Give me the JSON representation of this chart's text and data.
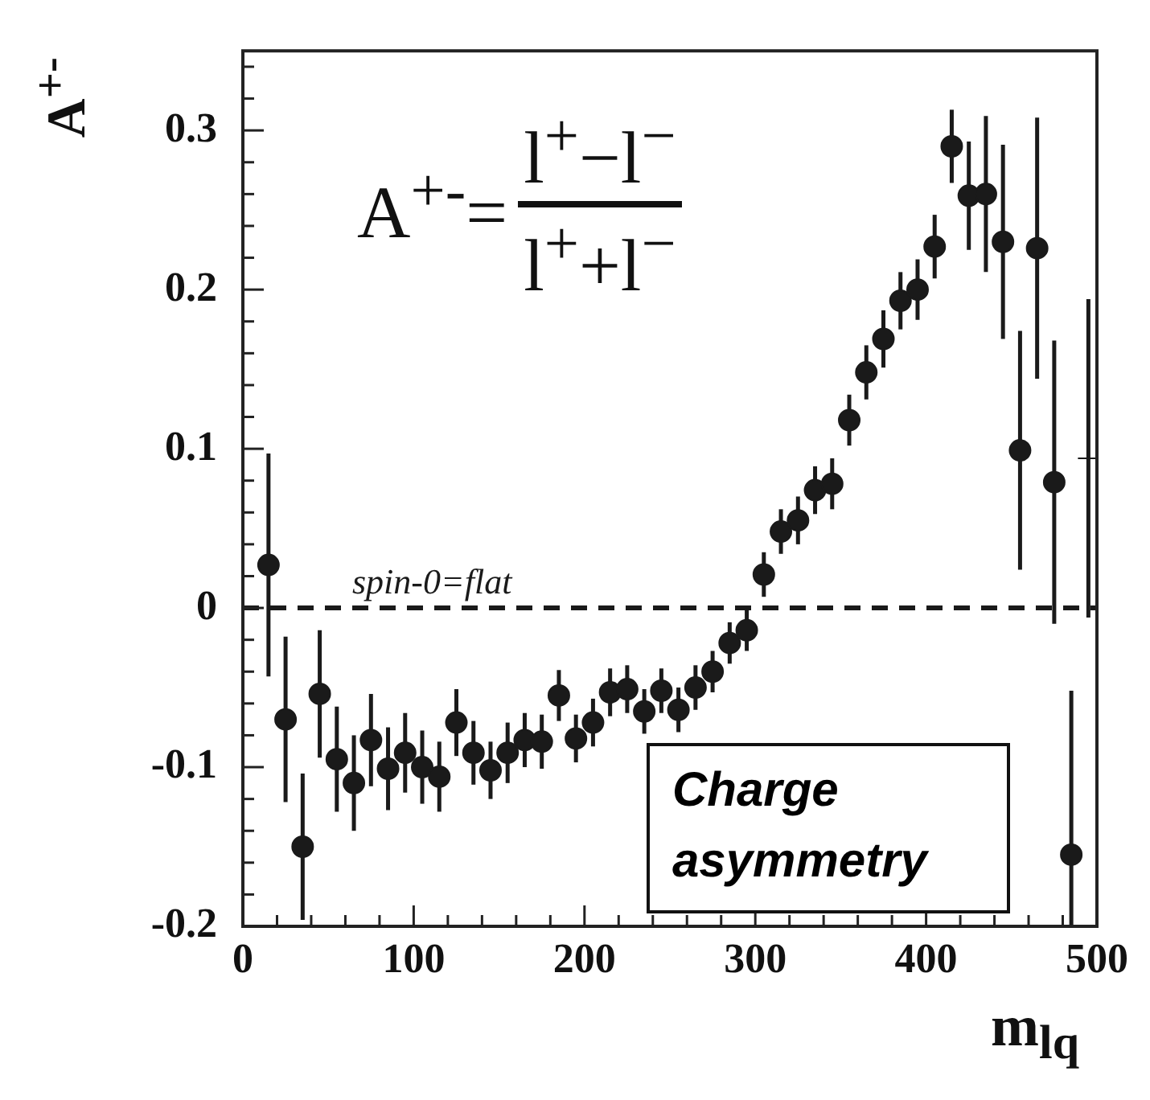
{
  "chart_data": {
    "type": "scatter",
    "xlabel": "m$_{lq}$",
    "ylabel": "A$^{+-}$",
    "xlim": [
      0,
      500
    ],
    "xticks": [
      0,
      {
        "value": 20,
        "label": null
      },
      {
        "value": 40,
        "label": null
      },
      {
        "value": 60,
        "label": null
      },
      {
        "value": 80,
        "label": null
      },
      100,
      {
        "value": 120,
        "label": null
      },
      {
        "value": 140,
        "label": null
      },
      {
        "value": 160,
        "label": null
      },
      {
        "value": 180,
        "label": null
      },
      200,
      {
        "value": 220,
        "label": null
      },
      {
        "value": 240,
        "label": null
      },
      {
        "value": 260,
        "label": null
      },
      {
        "value": 280,
        "label": null
      },
      300,
      {
        "value": 320,
        "label": null
      },
      {
        "value": 340,
        "label": null
      },
      {
        "value": 360,
        "label": null
      },
      {
        "value": 380,
        "label": null
      },
      400,
      {
        "value": 420,
        "label": null
      },
      {
        "value": 440,
        "label": null
      },
      {
        "value": 460,
        "label": null
      },
      {
        "value": 480,
        "label": null
      },
      500
    ],
    "ylim": [
      -0.2,
      0.35
    ],
    "yticks": [
      -0.2,
      {
        "value": -0.18,
        "label": null
      },
      {
        "value": -0.16,
        "label": null
      },
      {
        "value": -0.14,
        "label": null
      },
      {
        "value": -0.12,
        "label": null
      },
      -0.1,
      {
        "value": -0.08,
        "label": null
      },
      {
        "value": -0.06,
        "label": null
      },
      {
        "value": -0.04,
        "label": null
      },
      {
        "value": -0.02,
        "label": null
      },
      0,
      {
        "value": 0.02,
        "label": null
      },
      {
        "value": 0.04,
        "label": null
      },
      {
        "value": 0.06,
        "label": null
      },
      {
        "value": 0.08,
        "label": null
      },
      0.1,
      {
        "value": 0.12,
        "label": null
      },
      {
        "value": 0.14,
        "label": null
      },
      {
        "value": 0.16,
        "label": null
      },
      {
        "value": 0.18,
        "label": null
      },
      0.2,
      {
        "value": 0.22,
        "label": null
      },
      {
        "value": 0.24,
        "label": null
      },
      {
        "value": 0.26,
        "label": null
      },
      {
        "value": 0.28,
        "label": null
      },
      0.3,
      {
        "value": 0.32,
        "label": null
      },
      {
        "value": 0.34,
        "label": null
      }
    ],
    "grid": false,
    "legend": false,
    "marker": "circle",
    "series": [
      {
        "color": "#1a1a1a",
        "x": [
          15,
          25,
          35,
          45,
          55,
          65,
          75,
          85,
          95,
          105,
          115,
          125,
          135,
          145,
          155,
          165,
          175,
          185,
          195,
          205,
          215,
          225,
          235,
          245,
          255,
          265,
          275,
          285,
          295,
          305,
          315,
          325,
          335,
          345,
          355,
          365,
          375,
          385,
          395,
          405,
          415,
          425,
          435,
          445,
          455,
          465,
          475,
          485
        ],
        "values": [
          0.027,
          -0.07,
          -0.15,
          -0.054,
          -0.095,
          -0.11,
          -0.083,
          -0.101,
          -0.091,
          -0.1,
          -0.106,
          -0.072,
          -0.091,
          -0.102,
          -0.091,
          -0.083,
          -0.084,
          -0.055,
          -0.082,
          -0.072,
          -0.053,
          -0.051,
          -0.065,
          -0.052,
          -0.064,
          -0.05,
          -0.04,
          -0.022,
          -0.014,
          0.021,
          0.048,
          0.055,
          0.074,
          0.078,
          0.118,
          0.148,
          0.169,
          0.193,
          0.2,
          0.227,
          0.29,
          0.259,
          0.26,
          0.23,
          0.099,
          0.226,
          0.079,
          -0.155
        ],
        "errors": [
          0.07,
          0.052,
          0.046,
          0.04,
          0.033,
          0.03,
          0.029,
          0.026,
          0.025,
          0.023,
          0.022,
          0.021,
          0.02,
          0.018,
          0.019,
          0.017,
          0.017,
          0.016,
          0.015,
          0.015,
          0.015,
          0.015,
          0.014,
          0.014,
          0.014,
          0.014,
          0.013,
          0.013,
          0.013,
          0.014,
          0.014,
          0.015,
          0.015,
          0.016,
          0.016,
          0.017,
          0.018,
          0.018,
          0.019,
          0.02,
          0.023,
          0.034,
          0.049,
          0.061,
          0.075,
          0.082,
          0.089,
          [
            -0.2,
            -0.052
          ]
        ]
      },
      {
        "color": "#1a1a1a",
        "marker": "cross",
        "x": [
          495
        ],
        "values": [
          0.094
        ],
        "errors": [
          0.1
        ]
      }
    ],
    "ref_lines": [
      {
        "axis": "y",
        "value": 0,
        "label": "spin-0=flat",
        "line_style": "dashed",
        "color": "#1a1a1a"
      }
    ],
    "annotations": [
      "A$^{+-}$=",
      "l$^{+}$−l$^{−}$",
      "l$^{+}$+l$^{−}$",
      "Charge asymmetry"
    ]
  }
}
